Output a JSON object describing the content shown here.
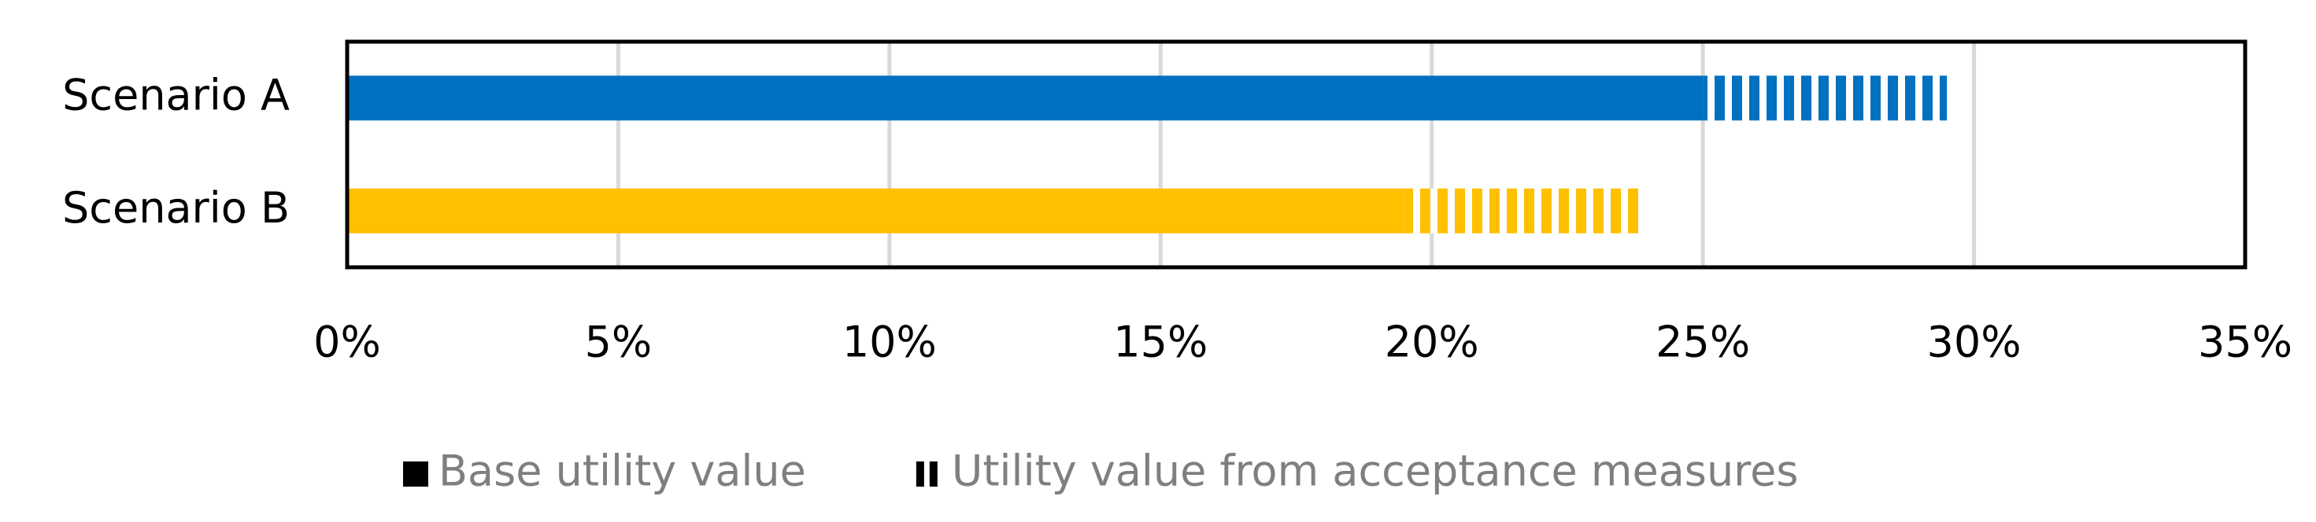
{
  "chart_data": {
    "type": "stacked-barh",
    "categories": [
      "Scenario A",
      "Scenario B"
    ],
    "series": [
      {
        "name": "Base utility value",
        "colors": [
          "#0070c0",
          "#ffc000"
        ],
        "values": [
          25,
          19.5
        ]
      },
      {
        "name": "Utility value from acceptance measures",
        "colors": [
          "#0070c0",
          "#ffc000"
        ],
        "pattern": "vertical-stripes",
        "values": [
          4.5,
          4.4
        ]
      }
    ],
    "xlim": [
      0,
      35
    ],
    "xticks": [
      {
        "value": 0,
        "label": "0%"
      },
      {
        "value": 5,
        "label": "5%"
      },
      {
        "value": 10,
        "label": "10%"
      },
      {
        "value": 15,
        "label": "15%"
      },
      {
        "value": 20,
        "label": "20%"
      },
      {
        "value": 25,
        "label": "25%"
      },
      {
        "value": 30,
        "label": "30%"
      },
      {
        "value": 35,
        "label": "35%"
      }
    ],
    "grid": true,
    "legend": "bottom"
  }
}
